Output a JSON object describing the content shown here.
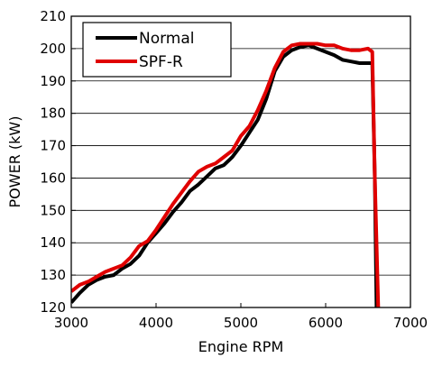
{
  "chart_data": {
    "type": "line",
    "title": "",
    "xlabel": "Engine RPM",
    "ylabel": "POWER (kW)",
    "xlim": [
      3000,
      7000
    ],
    "ylim": [
      120,
      210
    ],
    "x_ticks": [
      3000,
      4000,
      5000,
      6000,
      7000
    ],
    "y_ticks": [
      120,
      130,
      140,
      150,
      160,
      170,
      180,
      190,
      200,
      210
    ],
    "grid": "horizontal",
    "legend_position": "top-left",
    "series": [
      {
        "name": "Normal",
        "color": "#000000",
        "points": [
          [
            3000,
            121.5
          ],
          [
            3100,
            124.5
          ],
          [
            3200,
            127
          ],
          [
            3300,
            128.5
          ],
          [
            3400,
            129.5
          ],
          [
            3500,
            130
          ],
          [
            3600,
            132
          ],
          [
            3700,
            133.5
          ],
          [
            3800,
            136
          ],
          [
            3900,
            140
          ],
          [
            4000,
            143
          ],
          [
            4100,
            146
          ],
          [
            4200,
            149.5
          ],
          [
            4300,
            152.5
          ],
          [
            4400,
            156
          ],
          [
            4500,
            158
          ],
          [
            4600,
            160.5
          ],
          [
            4700,
            163
          ],
          [
            4800,
            164
          ],
          [
            4900,
            166.5
          ],
          [
            5000,
            170
          ],
          [
            5100,
            174
          ],
          [
            5200,
            178
          ],
          [
            5300,
            184.5
          ],
          [
            5400,
            193
          ],
          [
            5500,
            197.5
          ],
          [
            5600,
            199.5
          ],
          [
            5700,
            200.5
          ],
          [
            5800,
            201
          ],
          [
            5900,
            200
          ],
          [
            6000,
            199
          ],
          [
            6100,
            198
          ],
          [
            6200,
            196.5
          ],
          [
            6300,
            196
          ],
          [
            6400,
            195.5
          ],
          [
            6500,
            195.5
          ],
          [
            6550,
            195.5
          ],
          [
            6580,
            160
          ],
          [
            6600,
            120
          ]
        ]
      },
      {
        "name": "SPF-R",
        "color": "#e00000",
        "points": [
          [
            3000,
            125
          ],
          [
            3100,
            127
          ],
          [
            3200,
            128
          ],
          [
            3300,
            129.5
          ],
          [
            3400,
            131
          ],
          [
            3500,
            132
          ],
          [
            3600,
            133
          ],
          [
            3700,
            135.5
          ],
          [
            3800,
            139
          ],
          [
            3900,
            140.5
          ],
          [
            4000,
            144
          ],
          [
            4100,
            148
          ],
          [
            4200,
            152
          ],
          [
            4300,
            155.5
          ],
          [
            4400,
            159
          ],
          [
            4500,
            162
          ],
          [
            4600,
            163.5
          ],
          [
            4700,
            164.5
          ],
          [
            4800,
            166.5
          ],
          [
            4900,
            168.5
          ],
          [
            5000,
            173
          ],
          [
            5100,
            176
          ],
          [
            5200,
            181
          ],
          [
            5300,
            187
          ],
          [
            5400,
            194
          ],
          [
            5500,
            199
          ],
          [
            5600,
            201
          ],
          [
            5700,
            201.5
          ],
          [
            5800,
            201.5
          ],
          [
            5900,
            201.5
          ],
          [
            6000,
            201
          ],
          [
            6100,
            201
          ],
          [
            6200,
            200
          ],
          [
            6300,
            199.5
          ],
          [
            6400,
            199.5
          ],
          [
            6500,
            200
          ],
          [
            6550,
            199
          ],
          [
            6580,
            160
          ],
          [
            6620,
            120
          ]
        ]
      }
    ]
  }
}
